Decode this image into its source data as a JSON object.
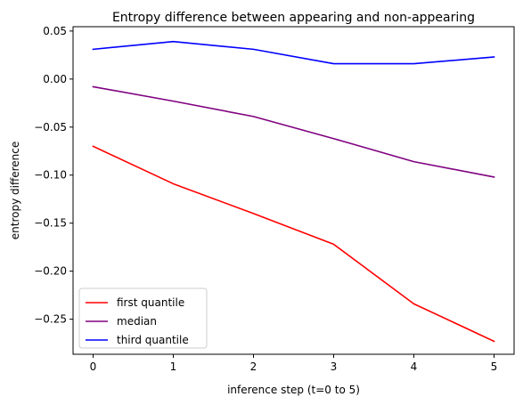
{
  "chart_data": {
    "type": "line",
    "title": "Entropy difference between appearing and non-appearing",
    "xlabel": "inference step (t=0 to 5)",
    "ylabel": "entropy difference",
    "x": [
      0,
      1,
      2,
      3,
      4,
      5
    ],
    "x_ticks": [
      "0",
      "1",
      "2",
      "3",
      "4",
      "5"
    ],
    "y_ticks": [
      0.05,
      0.0,
      -0.05,
      -0.1,
      -0.15,
      -0.2,
      -0.25
    ],
    "y_tick_labels": [
      "0.05",
      "0.00",
      "−0.05",
      "−0.10",
      "−0.15",
      "−0.20",
      "−0.25"
    ],
    "xlim": [
      -0.25,
      5.25
    ],
    "ylim": [
      -0.2865,
      0.0545
    ],
    "grid": false,
    "legend_position": "lower-left",
    "series": [
      {
        "name": "first quantile",
        "color": "#ff0000",
        "values": [
          -0.07,
          -0.109,
          -0.14,
          -0.172,
          -0.234,
          -0.273
        ]
      },
      {
        "name": "median",
        "color": "#800080",
        "values": [
          -0.008,
          -0.023,
          -0.039,
          -0.062,
          -0.086,
          -0.102
        ]
      },
      {
        "name": "third quantile",
        "color": "#0000ff",
        "values": [
          0.031,
          0.039,
          0.031,
          0.016,
          0.016,
          0.023
        ]
      }
    ]
  }
}
